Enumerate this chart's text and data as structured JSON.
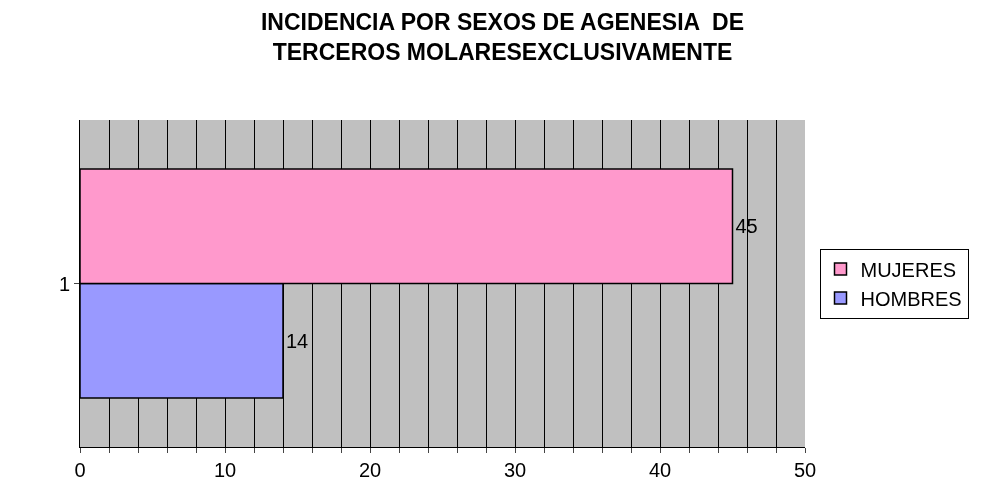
{
  "chart_data": {
    "type": "bar",
    "orientation": "horizontal",
    "title": "INCIDENCIA POR SEXOS DE AGENESIA  DE TERCEROS MOLARESEXCLUSIVAMENTE",
    "categories": [
      "1"
    ],
    "series": [
      {
        "name": "MUJERES",
        "color": "#ff99cc",
        "values": [
          45
        ]
      },
      {
        "name": "HOMBRES",
        "color": "#9999ff",
        "values": [
          14
        ]
      }
    ],
    "xlim": [
      0,
      50
    ],
    "xticks": [
      0,
      {
        "value": 2,
        "label": null
      },
      {
        "value": 4,
        "label": null
      },
      {
        "value": 6,
        "label": null
      },
      {
        "value": 8,
        "label": null
      },
      10,
      {
        "value": 12,
        "label": null
      },
      {
        "value": 14,
        "label": null
      },
      {
        "value": 16,
        "label": null
      },
      {
        "value": 18,
        "label": null
      },
      20,
      {
        "value": 22,
        "label": null
      },
      {
        "value": 24,
        "label": null
      },
      {
        "value": 26,
        "label": null
      },
      {
        "value": 28,
        "label": null
      },
      30,
      {
        "value": 32,
        "label": null
      },
      {
        "value": 34,
        "label": null
      },
      {
        "value": 36,
        "label": null
      },
      {
        "value": 38,
        "label": null
      },
      40,
      {
        "value": 42,
        "label": null
      },
      {
        "value": 44,
        "label": null
      },
      {
        "value": 46,
        "label": null
      },
      {
        "value": 48,
        "label": null
      },
      50
    ],
    "grid": "x",
    "legend": "right",
    "data_labels": true
  }
}
